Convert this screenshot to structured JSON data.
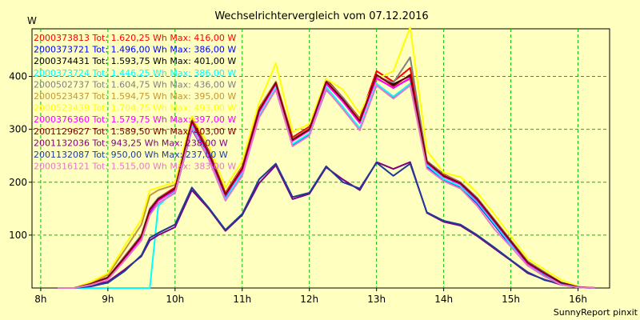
{
  "chart_data": {
    "type": "line",
    "title": "Wechselrichtervergleich vom 07.12.2016",
    "ylabel": "W",
    "xlabel": "",
    "footer": "SunnyReport pinxit",
    "x_ticks": [
      {
        "label": "8h",
        "value": 8
      },
      {
        "label": "9h",
        "value": 9
      },
      {
        "label": "10h",
        "value": 10
      },
      {
        "label": "11h",
        "value": 11
      },
      {
        "label": "12h",
        "value": 12
      },
      {
        "label": "13h",
        "value": 13
      },
      {
        "label": "14h",
        "value": 14
      },
      {
        "label": "15h",
        "value": 15
      },
      {
        "label": "16h",
        "value": 16
      }
    ],
    "y_ticks": [
      100,
      200,
      300,
      400
    ],
    "xlim": [
      7.87,
      16.47
    ],
    "ylim": [
      0,
      490
    ],
    "grid": true,
    "legend_position": "top-left",
    "x": [
      8.25,
      8.5,
      8.75,
      9.0,
      9.25,
      9.5,
      9.625,
      9.75,
      10.0,
      10.25,
      10.5,
      10.75,
      11.0,
      11.25,
      11.5,
      11.75,
      12.0,
      12.25,
      12.5,
      12.75,
      13.0,
      13.25,
      13.5,
      13.75,
      14.0,
      14.25,
      14.5,
      14.75,
      15.0,
      15.25,
      15.5,
      15.75,
      16.0,
      16.25
    ],
    "series": [
      {
        "name": "2000373813 Tot: 1.620,25 Wh Max: 416,00 W",
        "color": "#ff0000",
        "values": [
          0,
          0,
          8,
          20,
          60,
          100,
          150,
          170,
          190,
          320,
          260,
          180,
          230,
          340,
          390,
          285,
          305,
          395,
          360,
          320,
          410,
          390,
          416,
          240,
          215,
          200,
          170,
          130,
          90,
          50,
          30,
          10,
          2,
          0
        ]
      },
      {
        "name": "2000373721 Tot: 1.496,00 Wh Max: 386,00 W",
        "color": "#0000ff",
        "values": [
          0,
          0,
          6,
          18,
          55,
          95,
          140,
          160,
          180,
          300,
          245,
          170,
          215,
          325,
          375,
          270,
          290,
          375,
          340,
          300,
          386,
          360,
          386,
          230,
          205,
          190,
          160,
          120,
          80,
          45,
          25,
          8,
          2,
          0
        ]
      },
      {
        "name": "2000374431 Tot: 1.593,75 Wh Max: 401,00 W",
        "color": "#000000",
        "values": [
          0,
          0,
          8,
          20,
          58,
          100,
          148,
          168,
          188,
          315,
          255,
          178,
          225,
          335,
          385,
          280,
          300,
          390,
          355,
          315,
          401,
          385,
          401,
          238,
          212,
          198,
          168,
          128,
          88,
          48,
          28,
          10,
          2,
          0
        ]
      },
      {
        "name": "2000373724 Tot: 1.446,25 Wh Max: 386,00 W",
        "color": "#00ffff",
        "values": [
          0,
          0,
          0,
          0,
          0,
          0,
          0,
          155,
          185,
          305,
          245,
          168,
          218,
          325,
          378,
          272,
          292,
          380,
          342,
          302,
          386,
          362,
          386,
          232,
          206,
          192,
          162,
          122,
          82,
          45,
          26,
          8,
          2,
          0
        ]
      },
      {
        "name": "2000502737 Tot: 1.604,75 Wh Max: 436,00 W",
        "color": "#808080",
        "values": [
          0,
          0,
          8,
          20,
          60,
          100,
          150,
          170,
          188,
          318,
          258,
          178,
          228,
          338,
          390,
          282,
          302,
          392,
          360,
          318,
          400,
          388,
          436,
          240,
          214,
          200,
          170,
          130,
          90,
          50,
          30,
          10,
          2,
          0
        ]
      },
      {
        "name": "2000523437 Tot: 1.594,75 Wh Max: 395,00 W",
        "color": "#c89632",
        "values": [
          0,
          0,
          10,
          25,
          72,
          120,
          175,
          185,
          195,
          318,
          255,
          178,
          228,
          338,
          390,
          280,
          302,
          388,
          355,
          318,
          395,
          380,
          395,
          238,
          212,
          198,
          168,
          128,
          88,
          48,
          28,
          10,
          2,
          0
        ]
      },
      {
        "name": "2000523439 Tot: 1.704,75 Wh Max: 493,00 W",
        "color": "#ffff00",
        "values": [
          0,
          0,
          12,
          28,
          80,
          130,
          185,
          190,
          200,
          325,
          270,
          190,
          240,
          350,
          425,
          295,
          310,
          395,
          375,
          330,
          395,
          410,
          493,
          260,
          218,
          210,
          180,
          140,
          98,
          55,
          35,
          15,
          3,
          0
        ]
      },
      {
        "name": "2000376360 Tot: 1.579,75 Wh Max: 397,00 W",
        "color": "#ff00ff",
        "values": [
          0,
          0,
          7,
          18,
          55,
          95,
          145,
          165,
          185,
          312,
          252,
          175,
          222,
          332,
          385,
          278,
          298,
          386,
          352,
          312,
          397,
          378,
          397,
          236,
          210,
          196,
          165,
          126,
          86,
          46,
          27,
          9,
          2,
          0
        ]
      },
      {
        "name": "2001129627 Tot: 1.589,50 Wh Max: 403,00 W",
        "color": "#800000",
        "values": [
          0,
          0,
          8,
          20,
          58,
          98,
          148,
          168,
          188,
          316,
          256,
          177,
          226,
          336,
          388,
          280,
          300,
          390,
          356,
          316,
          403,
          382,
          403,
          238,
          212,
          198,
          168,
          128,
          88,
          48,
          28,
          10,
          2,
          0
        ]
      },
      {
        "name": "2001132036 Tot: 943,25 Wh Max: 238,00 W",
        "color": "#800080",
        "values": [
          0,
          0,
          5,
          12,
          35,
          60,
          90,
          100,
          115,
          185,
          150,
          108,
          138,
          198,
          232,
          168,
          178,
          228,
          205,
          185,
          238,
          225,
          238,
          142,
          125,
          118,
          98,
          75,
          52,
          28,
          16,
          6,
          1,
          0
        ]
      },
      {
        "name": "2001132087 Tot: 950,00 Wh Max: 237,00 W",
        "color": "#1e3c96",
        "values": [
          0,
          0,
          3,
          10,
          32,
          62,
          95,
          104,
          120,
          190,
          152,
          110,
          140,
          205,
          235,
          172,
          180,
          230,
          200,
          188,
          237,
          212,
          235,
          143,
          127,
          120,
          100,
          77,
          53,
          30,
          15,
          8,
          1,
          0
        ]
      },
      {
        "name": "2000316121 Tot: 1.515,00 Wh Max: 383,00 W",
        "color": "#e678c8",
        "values": [
          0,
          0,
          6,
          16,
          52,
          90,
          138,
          160,
          180,
          302,
          244,
          165,
          212,
          322,
          375,
          268,
          288,
          376,
          338,
          298,
          383,
          358,
          383,
          226,
          202,
          188,
          155,
          112,
          78,
          42,
          22,
          6,
          1,
          0
        ]
      }
    ]
  }
}
